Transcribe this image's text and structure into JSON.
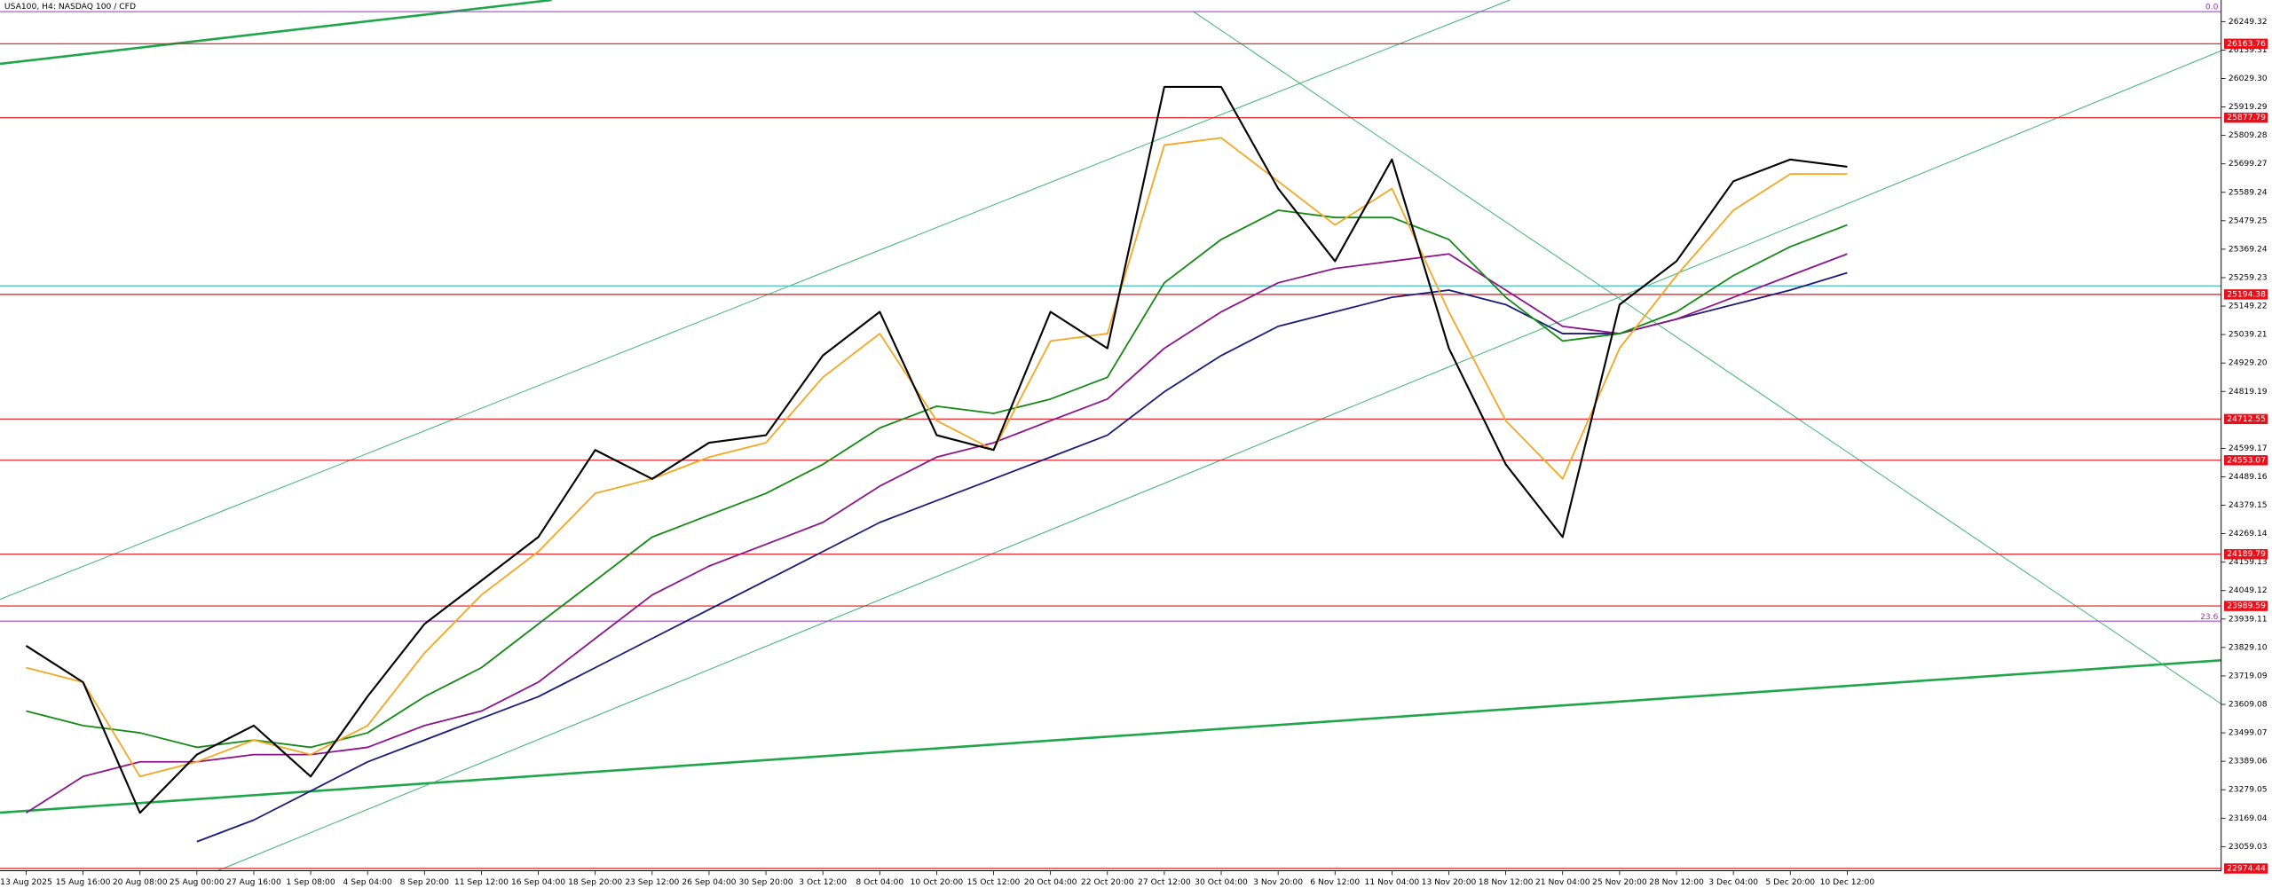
{
  "chart_data": {
    "type": "line",
    "title": "USA100, H4:  NASDAQ 100 / CFD",
    "categories": [
      "13 Aug 2025",
      "15 Aug 16:00",
      "20 Aug 08:00",
      "25 Aug 00:00",
      "27 Aug 16:00",
      "1 Sep 08:00",
      "4 Sep 04:00",
      "8 Sep 20:00",
      "11 Sep 12:00",
      "16 Sep 04:00",
      "18 Sep 20:00",
      "23 Sep 12:00",
      "26 Sep 04:00",
      "30 Sep 20:00",
      "3 Oct 12:00",
      "8 Oct 04:00",
      "10 Oct 20:00",
      "15 Oct 12:00",
      "20 Oct 04:00",
      "22 Oct 20:00",
      "27 Oct 12:00",
      "30 Oct 04:00",
      "3 Nov 20:00",
      "6 Nov 12:00",
      "11 Nov 04:00",
      "13 Nov 20:00",
      "18 Nov 12:00",
      "21 Nov 04:00",
      "25 Nov 20:00",
      "28 Nov 12:00",
      "3 Dec 04:00",
      "5 Dec 20:00",
      "10 Dec 12:00"
    ],
    "series": [
      {
        "color": "#1a1a7a",
        "values": [
          null,
          null,
          null,
          23078,
          23162,
          23274,
          23387,
          23471,
          23555,
          23639,
          23751,
          23864,
          23976,
          24088,
          24200,
          24313,
          24397,
          24481,
          24565,
          24650,
          24818,
          24958,
          25071,
          25127,
          25183,
          25211,
          25155,
          25043,
          25043,
          25099,
          25155,
          25211,
          25278
        ]
      },
      {
        "color": "#8b158b",
        "values": [
          23190,
          23330,
          23387,
          23387,
          23415,
          23415,
          23443,
          23527,
          23583,
          23695,
          23864,
          24032,
          24144,
          24228,
          24313,
          24453,
          24565,
          24621,
          24706,
          24790,
          24986,
          25127,
          25239,
          25295,
          25323,
          25351,
          25211,
          25071,
          25043,
          25099,
          25183,
          25267,
          25351
        ]
      },
      {
        "color": "#138a13",
        "values": [
          23583,
          23527,
          23499,
          23443,
          23471,
          23443,
          23499,
          23639,
          23751,
          23920,
          24088,
          24256,
          24341,
          24425,
          24537,
          24678,
          24762,
          24734,
          24790,
          24874,
          25239,
          25407,
          25520,
          25492,
          25492,
          25407,
          25183,
          25014,
          25043,
          25127,
          25267,
          25379,
          25463
        ]
      },
      {
        "color": "#f5a623",
        "values": [
          23751,
          23695,
          23330,
          23387,
          23471,
          23415,
          23527,
          23808,
          24032,
          24200,
          24425,
          24481,
          24565,
          24621,
          24874,
          25043,
          24706,
          24593,
          25014,
          25043,
          25772,
          25800,
          25632,
          25463,
          25604,
          25127,
          24706,
          24481,
          24986,
          25267,
          25520,
          25660,
          25660
        ]
      },
      {
        "color": "#000000",
        "values": [
          23836,
          23695,
          23190,
          23415,
          23527,
          23330,
          23640,
          23920,
          24088,
          24256,
          24593,
          24481,
          24621,
          24650,
          24958,
          25127,
          24650,
          24593,
          25127,
          24986,
          25997,
          25997,
          25604,
          25323,
          25716,
          24986,
          24537,
          24256,
          25155,
          25323,
          25632,
          25716,
          25688
        ]
      }
    ],
    "ylim": [
      22966,
      26288
    ],
    "yticks": [
      {
        "value": 26249.32,
        "label": "26249.32"
      },
      {
        "value": 26139.31,
        "label": "26139.31"
      },
      {
        "value": 26029.3,
        "label": "26029.30"
      },
      {
        "value": 25919.29,
        "label": "25919.29"
      },
      {
        "value": 25809.28,
        "label": "25809.28"
      },
      {
        "value": 25699.27,
        "label": "25699.27"
      },
      {
        "value": 25589.24,
        "label": "25589.24"
      },
      {
        "value": 25479.25,
        "label": "25479.25"
      },
      {
        "value": 25369.24,
        "label": "25369.24"
      },
      {
        "value": 25259.23,
        "label": "25259.23"
      },
      {
        "value": 25149.22,
        "label": "25149.22"
      },
      {
        "value": 25039.21,
        "label": "25039.21"
      },
      {
        "value": 24929.2,
        "label": "24929.20"
      },
      {
        "value": 24819.19,
        "label": "24819.19"
      },
      {
        "value": 24599.17,
        "label": "24599.17"
      },
      {
        "value": 24489.16,
        "label": "24489.16"
      },
      {
        "value": 24379.15,
        "label": "24379.15"
      },
      {
        "value": 24269.14,
        "label": "24269.14"
      },
      {
        "value": 24159.13,
        "label": "24159.13"
      },
      {
        "value": 24049.12,
        "label": "24049.12"
      },
      {
        "value": 23939.11,
        "label": "23939.11"
      },
      {
        "value": 23829.1,
        "label": "23829.10"
      },
      {
        "value": 23719.09,
        "label": "23719.09"
      },
      {
        "value": 23609.08,
        "label": "23609.08"
      },
      {
        "value": 23499.07,
        "label": "23499.07"
      },
      {
        "value": 23389.06,
        "label": "23389.06"
      },
      {
        "value": 23279.05,
        "label": "23279.05"
      },
      {
        "value": 23169.04,
        "label": "23169.04"
      },
      {
        "value": 23059.03,
        "label": "23059.03"
      }
    ],
    "levels": [
      26163.76,
      25877.79,
      25194.38,
      24712.55,
      24553.07,
      24189.79,
      23989.59,
      22974.44
    ],
    "level_color": "#e8101a",
    "fib_levels": [
      {
        "value": 26288,
        "label": "0.0"
      },
      {
        "value": 23931,
        "label": "23.6"
      }
    ],
    "fib_color": "#9b30c8",
    "grid": false
  }
}
